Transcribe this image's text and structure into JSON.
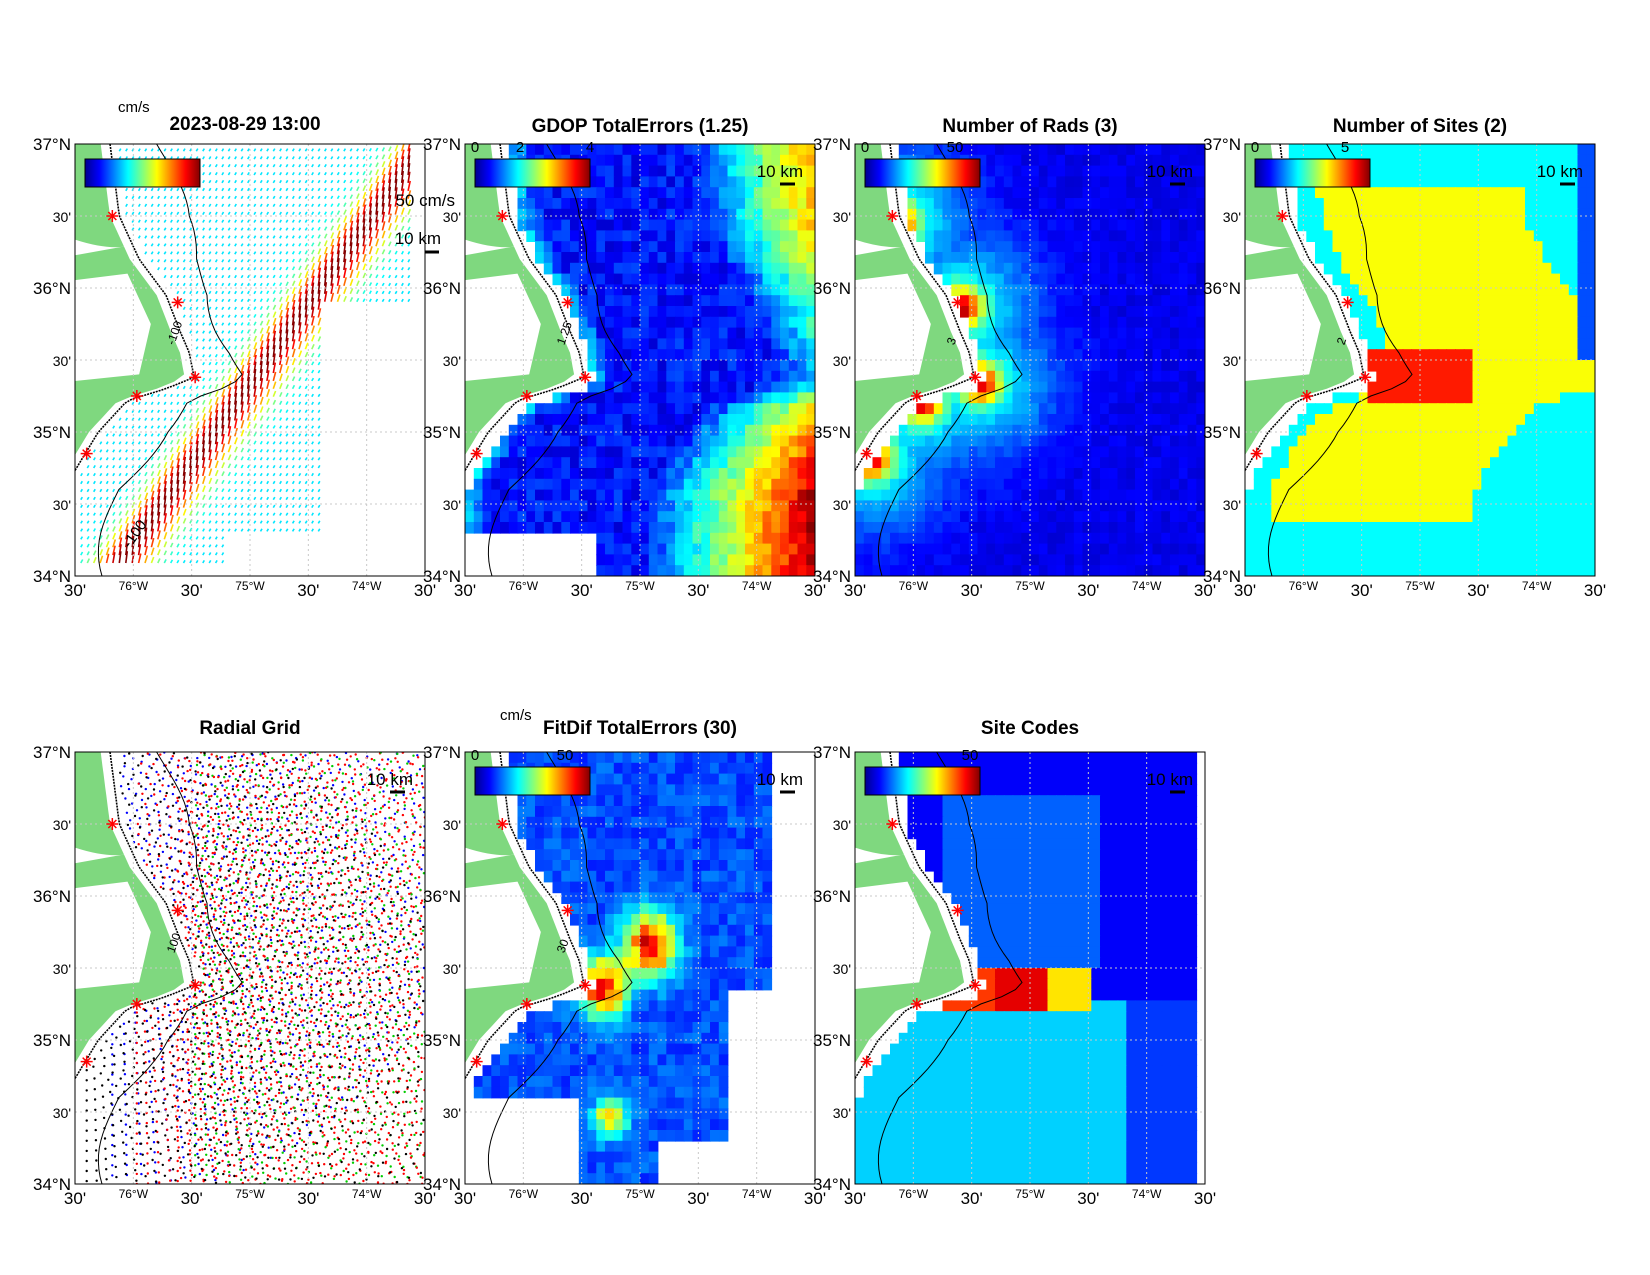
{
  "figure": {
    "timestamp": "2023-08-29 13:00",
    "colorbar_unit": "cm/s",
    "vector_scale_label": "50 cm/s",
    "scale_bar_label": "10 km",
    "lon_ticks": [
      "30'",
      "76°W",
      "30'",
      "75°W",
      "30'",
      "74°W",
      "30'"
    ],
    "lat_ticks": [
      "37°N",
      "30'",
      "36°N",
      "30'",
      "35°N",
      "30'",
      "34°N"
    ],
    "isobath_label": "-100",
    "isobath_label_alt": "100",
    "radar_sites": [
      {
        "lat": 36.5,
        "lon": -76.18
      },
      {
        "lat": 35.9,
        "lon": -75.62
      },
      {
        "lat": 35.38,
        "lon": -75.47
      },
      {
        "lat": 35.25,
        "lon": -75.97
      },
      {
        "lat": 34.85,
        "lon": -76.4
      }
    ],
    "colors": {
      "land": "#7fd87f",
      "coastline": "#000000",
      "site_marker": "#ff0000",
      "grid_lines": "#c8c8c8"
    },
    "panels": [
      {
        "id": "currents",
        "title": "",
        "type": "vector-field",
        "colorbar_ticks": [],
        "contour_label": "-100"
      },
      {
        "id": "gdop",
        "title": "GDOP TotalErrors (1.25)",
        "type": "raster",
        "colorbar_ticks": [
          "0",
          "2",
          "4"
        ],
        "contour_label": "1.25"
      },
      {
        "id": "nrads",
        "title": "Number of Rads (3)",
        "type": "raster",
        "colorbar_ticks": [
          "0",
          "50"
        ],
        "contour_label": "3"
      },
      {
        "id": "nsites",
        "title": "Number of Sites (2)",
        "type": "categorical",
        "colorbar_ticks": [
          "0",
          "5"
        ],
        "contour_label": "2"
      },
      {
        "id": "radialgrid",
        "title": "Radial Grid",
        "type": "radial-grid",
        "colorbar_ticks": [],
        "contour_label": "100"
      },
      {
        "id": "fitdif",
        "title": "FitDif TotalErrors (30)",
        "type": "raster",
        "colorbar_ticks": [
          "0",
          "50"
        ],
        "contour_label": "30",
        "unit": "cm/s"
      },
      {
        "id": "sitecodes",
        "title": "Site Codes",
        "type": "categorical",
        "colorbar_ticks": [
          "50"
        ],
        "contour_label": ""
      }
    ]
  }
}
